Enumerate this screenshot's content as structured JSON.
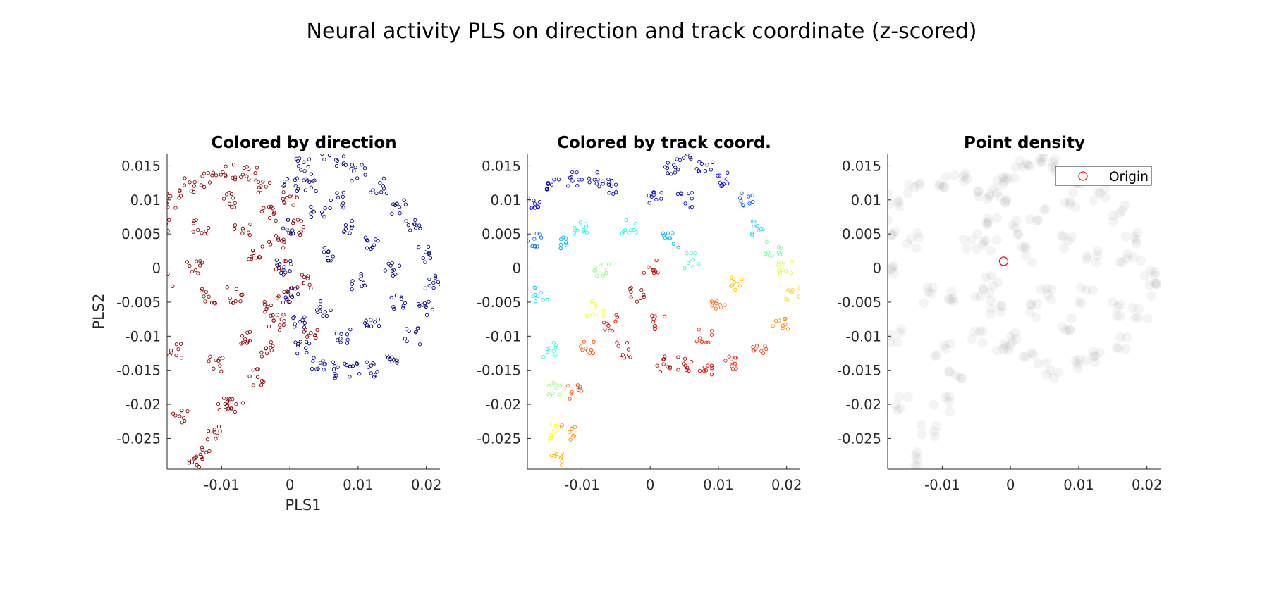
{
  "figure": {
    "title": "Neural activity PLS on direction and track coordinate (z-scored)"
  },
  "chart_data": [
    {
      "type": "scatter",
      "title": "Colored by direction",
      "xlabel": "PLS1",
      "ylabel": "PLS2",
      "xlim": [
        -0.018,
        0.022
      ],
      "ylim": [
        -0.0295,
        0.0168
      ],
      "xticks": [
        -0.01,
        0,
        0.01,
        0.02
      ],
      "xtick_labels": [
        "-0.01",
        "0",
        "0.01",
        "0.02"
      ],
      "yticks": [
        0.015,
        0.01,
        0.005,
        0,
        -0.005,
        -0.01,
        -0.015,
        -0.02,
        -0.025
      ],
      "ytick_labels": [
        "0.015",
        "0.01",
        "0.005",
        "0",
        "-0.005",
        "-0.01",
        "-0.015",
        "-0.02",
        "-0.025"
      ],
      "grid": false,
      "marker": "open circle",
      "color_encoding": "direction (two groups)",
      "series": [
        {
          "color": "#8b0000",
          "points": [
            [
              -0.017,
              0.01
            ],
            [
              -0.015,
              0.012
            ],
            [
              -0.012,
              0.013
            ],
            [
              -0.009,
              0.014
            ],
            [
              -0.006,
              0.014
            ],
            [
              -0.004,
              0.012
            ],
            [
              -0.003,
              0.008
            ],
            [
              -0.002,
              0.004
            ],
            [
              -0.001,
              0.0
            ],
            [
              -0.001,
              -0.004
            ],
            [
              -0.002,
              -0.008
            ],
            [
              -0.003,
              -0.012
            ],
            [
              -0.005,
              -0.016
            ],
            [
              -0.008,
              -0.02
            ],
            [
              -0.011,
              -0.024
            ],
            [
              -0.013,
              -0.027
            ],
            [
              -0.014,
              -0.029
            ],
            [
              -0.016,
              -0.022
            ],
            [
              -0.017,
              -0.012
            ],
            [
              -0.018,
              -0.002
            ],
            [
              -0.018,
              0.006
            ],
            [
              -0.013,
              0.006
            ],
            [
              -0.012,
              -0.004
            ],
            [
              -0.011,
              -0.014
            ],
            [
              -0.01,
              -0.02
            ],
            [
              -0.008,
              -0.004
            ],
            [
              -0.007,
              0.006
            ],
            [
              -0.006,
              -0.01
            ],
            [
              -0.005,
              0.002
            ],
            [
              -0.003,
              -0.006
            ],
            [
              0.0,
              0.01
            ],
            [
              0.001,
              0.006
            ],
            [
              0.002,
              -0.002
            ],
            [
              0.003,
              -0.01
            ],
            [
              -0.009,
              0.01
            ],
            [
              -0.014,
              0.0
            ]
          ]
        },
        {
          "color": "#00008b",
          "points": [
            [
              0.0,
              0.012
            ],
            [
              0.002,
              0.015
            ],
            [
              0.004,
              0.017
            ],
            [
              0.007,
              0.016
            ],
            [
              0.01,
              0.014
            ],
            [
              0.013,
              0.012
            ],
            [
              0.016,
              0.009
            ],
            [
              0.018,
              0.006
            ],
            [
              0.02,
              0.002
            ],
            [
              0.021,
              -0.002
            ],
            [
              0.02,
              -0.006
            ],
            [
              0.018,
              -0.01
            ],
            [
              0.015,
              -0.013
            ],
            [
              0.012,
              -0.015
            ],
            [
              0.009,
              -0.015
            ],
            [
              0.006,
              -0.015
            ],
            [
              0.004,
              -0.014
            ],
            [
              0.002,
              -0.012
            ],
            [
              0.001,
              -0.008
            ],
            [
              0.0,
              -0.004
            ],
            [
              -0.001,
              0.0
            ],
            [
              0.0,
              0.006
            ],
            [
              0.004,
              0.008
            ],
            [
              0.008,
              0.006
            ],
            [
              0.012,
              0.004
            ],
            [
              0.015,
              0.0
            ],
            [
              0.016,
              -0.005
            ],
            [
              0.012,
              -0.008
            ],
            [
              0.008,
              -0.01
            ],
            [
              0.005,
              -0.006
            ],
            [
              0.006,
              0.002
            ],
            [
              0.01,
              -0.002
            ],
            [
              0.003,
              0.012
            ],
            [
              0.007,
              0.01
            ]
          ]
        }
      ]
    },
    {
      "type": "scatter",
      "title": "Colored by track coord.",
      "xlabel": "",
      "ylabel": "",
      "xlim": [
        -0.018,
        0.022
      ],
      "ylim": [
        -0.0295,
        0.0168
      ],
      "xticks": [
        -0.01,
        0,
        0.01,
        0.02
      ],
      "xtick_labels": [
        "-0.01",
        "0",
        "0.01",
        "0.02"
      ],
      "yticks": [
        0.015,
        0.01,
        0.005,
        0,
        -0.005,
        -0.01,
        -0.015,
        -0.02,
        -0.025
      ],
      "ytick_labels": [
        "0.015",
        "0.01",
        "0.005",
        "0",
        "-0.005",
        "-0.01",
        "-0.015",
        "-0.02",
        "-0.025"
      ],
      "grid": false,
      "marker": "open circle",
      "color_encoding": "track coordinate (jet colormap, 0 = blue, 1 = dark red)",
      "colormap": [
        "#00008f",
        "#0000ff",
        "#00ffff",
        "#ffff00",
        "#ff0000",
        "#800000"
      ],
      "points": [
        [
          -0.017,
          0.01,
          0.1
        ],
        [
          -0.014,
          0.012,
          0.06
        ],
        [
          -0.011,
          0.013,
          0.05
        ],
        [
          -0.008,
          0.013,
          0.04
        ],
        [
          -0.005,
          0.012,
          0.03
        ],
        [
          -0.017,
          0.004,
          0.22
        ],
        [
          -0.016,
          -0.004,
          0.35
        ],
        [
          -0.015,
          -0.012,
          0.42
        ],
        [
          -0.014,
          -0.018,
          0.52
        ],
        [
          -0.014,
          -0.024,
          0.62
        ],
        [
          -0.014,
          -0.028,
          0.7
        ],
        [
          -0.012,
          -0.024,
          0.74
        ],
        [
          -0.011,
          -0.018,
          0.8
        ],
        [
          -0.009,
          -0.012,
          0.8
        ],
        [
          -0.008,
          -0.006,
          0.62
        ],
        [
          -0.007,
          0.0,
          0.5
        ],
        [
          -0.012,
          0.004,
          0.3
        ],
        [
          -0.01,
          0.006,
          0.38
        ],
        [
          -0.006,
          -0.008,
          0.9
        ],
        [
          -0.004,
          -0.012,
          0.94
        ],
        [
          -0.002,
          -0.004,
          0.97
        ],
        [
          0.0,
          0.0,
          0.92
        ],
        [
          0.001,
          -0.008,
          0.88
        ],
        [
          0.002,
          -0.014,
          0.96
        ],
        [
          0.001,
          0.01,
          0.08
        ],
        [
          0.003,
          0.015,
          0.03
        ],
        [
          0.005,
          0.017,
          0.02
        ],
        [
          0.008,
          0.015,
          0.05
        ],
        [
          0.011,
          0.013,
          0.1
        ],
        [
          0.014,
          0.01,
          0.2
        ],
        [
          0.016,
          0.006,
          0.34
        ],
        [
          0.018,
          0.003,
          0.48
        ],
        [
          0.02,
          0.0,
          0.58
        ],
        [
          0.021,
          -0.004,
          0.66
        ],
        [
          0.019,
          -0.008,
          0.74
        ],
        [
          0.016,
          -0.012,
          0.82
        ],
        [
          0.012,
          -0.014,
          0.86
        ],
        [
          0.008,
          -0.015,
          0.9
        ],
        [
          0.005,
          -0.014,
          0.94
        ],
        [
          0.01,
          -0.005,
          0.78
        ],
        [
          0.013,
          -0.002,
          0.68
        ],
        [
          0.006,
          0.001,
          0.45
        ],
        [
          0.003,
          0.004,
          0.3
        ],
        [
          0.005,
          0.01,
          0.1
        ],
        [
          -0.003,
          0.006,
          0.4
        ],
        [
          0.008,
          -0.01,
          0.84
        ]
      ]
    },
    {
      "type": "scatter",
      "title": "Point density",
      "xlabel": "",
      "ylabel": "",
      "xlim": [
        -0.018,
        0.022
      ],
      "ylim": [
        -0.0295,
        0.0168
      ],
      "xticks": [
        -0.01,
        0,
        0.01,
        0.02
      ],
      "xtick_labels": [
        "-0.01",
        "0",
        "0.01",
        "0.02"
      ],
      "yticks": [
        0.015,
        0.01,
        0.005,
        0,
        -0.005,
        -0.01,
        -0.015,
        -0.02,
        -0.025
      ],
      "ytick_labels": [
        "0.015",
        "0.01",
        "0.005",
        "0",
        "-0.005",
        "-0.01",
        "-0.015",
        "-0.02",
        "-0.025"
      ],
      "grid": false,
      "marker": "filled circle, translucent gray",
      "legend": {
        "placement": "top-right",
        "entries": [
          "Origin"
        ]
      },
      "origin_marker": {
        "name": "Origin",
        "x": -0.001,
        "y": 0.001,
        "color": "#ff0000",
        "marker": "open circle"
      },
      "points": [
        [
          -0.017,
          0.01
        ],
        [
          -0.014,
          0.012
        ],
        [
          -0.01,
          0.013
        ],
        [
          -0.007,
          0.013
        ],
        [
          -0.004,
          0.011
        ],
        [
          -0.002,
          0.012
        ],
        [
          0.0,
          0.014
        ],
        [
          0.002,
          0.015
        ],
        [
          0.004,
          0.016
        ],
        [
          0.007,
          0.015
        ],
        [
          0.01,
          0.013
        ],
        [
          0.013,
          0.011
        ],
        [
          0.016,
          0.008
        ],
        [
          0.018,
          0.004
        ],
        [
          0.02,
          0.0
        ],
        [
          0.021,
          -0.003
        ],
        [
          0.019,
          -0.007
        ],
        [
          0.016,
          -0.011
        ],
        [
          0.013,
          -0.013
        ],
        [
          0.01,
          -0.014
        ],
        [
          0.006,
          -0.015
        ],
        [
          0.003,
          -0.013
        ],
        [
          0.0,
          -0.01
        ],
        [
          -0.002,
          -0.006
        ],
        [
          -0.003,
          -0.002
        ],
        [
          -0.003,
          0.003
        ],
        [
          -0.003,
          0.007
        ],
        [
          -0.001,
          0.01
        ],
        [
          0.001,
          0.006
        ],
        [
          0.002,
          0.002
        ],
        [
          -0.005,
          -0.01
        ],
        [
          -0.008,
          -0.015
        ],
        [
          -0.01,
          -0.02
        ],
        [
          -0.012,
          -0.024
        ],
        [
          -0.014,
          -0.028
        ],
        [
          -0.016,
          -0.02
        ],
        [
          -0.017,
          -0.01
        ],
        [
          -0.018,
          0.0
        ],
        [
          -0.018,
          0.006
        ],
        [
          -0.014,
          0.004
        ],
        [
          -0.012,
          -0.004
        ],
        [
          -0.01,
          -0.012
        ],
        [
          -0.008,
          -0.004
        ],
        [
          -0.006,
          0.004
        ],
        [
          -0.004,
          -0.004
        ],
        [
          0.005,
          -0.004
        ],
        [
          0.008,
          -0.008
        ],
        [
          0.011,
          -0.004
        ],
        [
          0.012,
          0.002
        ],
        [
          0.008,
          0.004
        ],
        [
          0.004,
          0.008
        ],
        [
          -0.001,
          -0.012
        ],
        [
          0.003,
          -0.006
        ],
        [
          0.015,
          -0.006
        ],
        [
          0.017,
          0.002
        ],
        [
          0.009,
          0.01
        ]
      ]
    }
  ]
}
